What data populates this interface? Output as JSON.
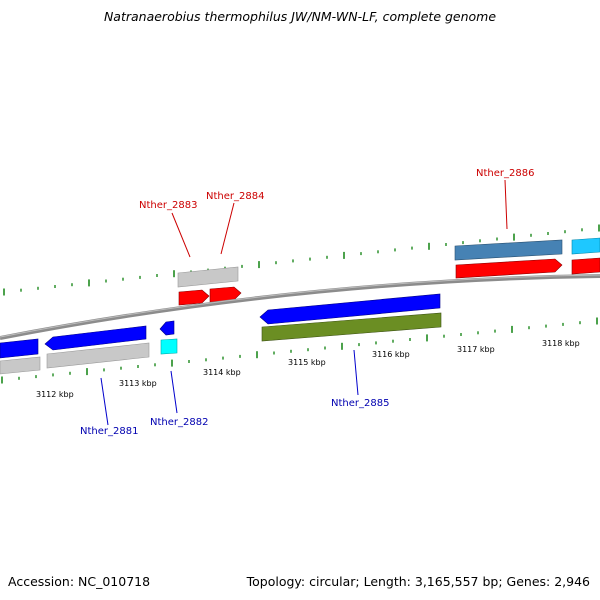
{
  "title": "Natranaerobius thermophilus JW/NM-WN-LF, complete genome",
  "footer": {
    "accession": "Accession: NC_010718",
    "summary": "Topology: circular; Length: 3,165,557 bp; Genes: 2,946"
  },
  "colors": {
    "backbone": "#8c8c8c",
    "tick": "#1f8a1f",
    "label_forward": "#cc0000",
    "label_reverse": "#0000b0",
    "leader_forward": "#cc0000",
    "leader_reverse": "#0000cc"
  },
  "positions": [
    "3112 kbp",
    "3113 kbp",
    "3114 kbp",
    "3115 kbp",
    "3116 kbp",
    "3117 kbp",
    "3118 kbp"
  ],
  "gene_labels": {
    "forward": [
      "Nther_2883",
      "Nther_2884",
      "Nther_2886"
    ],
    "reverse": [
      "Nther_2881",
      "Nther_2882",
      "Nther_2885"
    ]
  },
  "features": [
    {
      "name": "gene-left-blue-reverse",
      "color": "blue",
      "strand": "reverse"
    },
    {
      "name": "gene-left-gray-reverse",
      "color": "gray",
      "strand": "reverse"
    },
    {
      "name": "gene-2881-blue",
      "color": "blue",
      "strand": "reverse"
    },
    {
      "name": "gene-2881-gray",
      "color": "gray",
      "strand": "reverse"
    },
    {
      "name": "gene-2882-blue",
      "color": "blue",
      "strand": "reverse"
    },
    {
      "name": "gene-2882-cyan",
      "color": "cyan",
      "strand": "reverse"
    },
    {
      "name": "gene-2883-gray",
      "color": "gray",
      "strand": "forward"
    },
    {
      "name": "gene-2883-red",
      "color": "red",
      "strand": "forward"
    },
    {
      "name": "gene-2884-red",
      "color": "red",
      "strand": "forward"
    },
    {
      "name": "gene-2885-blue",
      "color": "blue",
      "strand": "reverse"
    },
    {
      "name": "gene-2885-olive",
      "color": "olive",
      "strand": "reverse"
    },
    {
      "name": "gene-2886-steelblue",
      "color": "steelblue",
      "strand": "forward"
    },
    {
      "name": "gene-2886-red",
      "color": "red",
      "strand": "forward"
    },
    {
      "name": "gene-right-cyan",
      "color": "cyan",
      "strand": "forward"
    },
    {
      "name": "gene-right-red",
      "color": "red",
      "strand": "forward"
    }
  ]
}
